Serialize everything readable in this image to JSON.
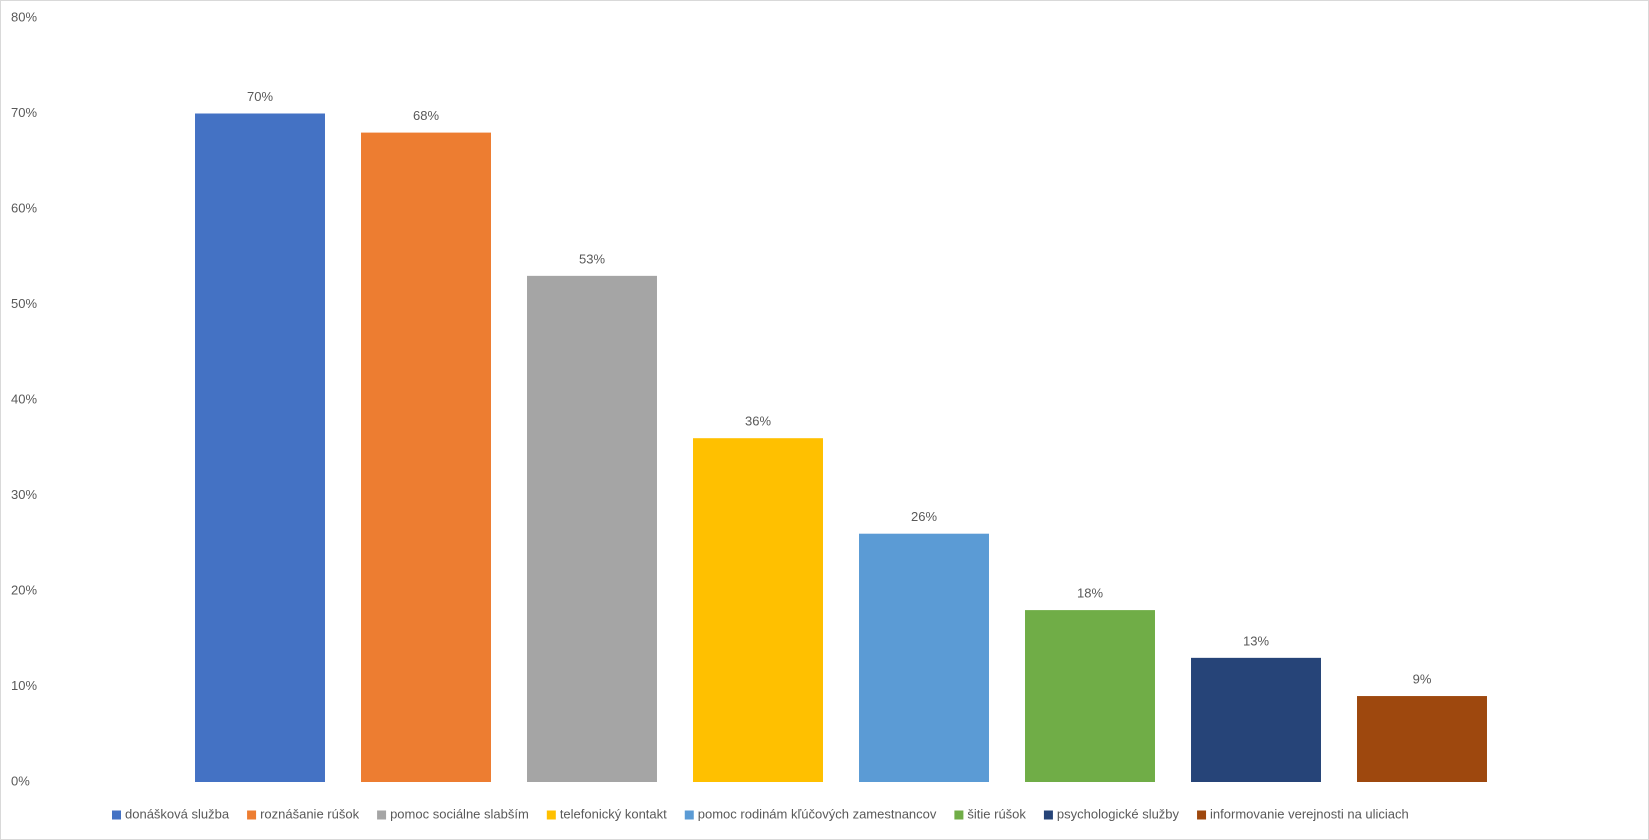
{
  "chart_data": {
    "type": "bar",
    "categories": [
      null
    ],
    "series": [
      {
        "name": "donášková služba",
        "color": "#4472c4",
        "values": [
          70
        ],
        "value_labels": [
          "70%"
        ]
      },
      {
        "name": "roznášanie rúšok",
        "color": "#ed7d31",
        "values": [
          68
        ],
        "value_labels": [
          "68%"
        ]
      },
      {
        "name": "pomoc sociálne slabším",
        "color": "#a5a5a5",
        "values": [
          53
        ],
        "value_labels": [
          "53%"
        ]
      },
      {
        "name": "telefonický kontakt",
        "color": "#ffc000",
        "values": [
          36
        ],
        "value_labels": [
          "36%"
        ]
      },
      {
        "name": "pomoc rodinám kľúčových zamestnancov",
        "color": "#5b9bd5",
        "values": [
          26
        ],
        "value_labels": [
          "26%"
        ]
      },
      {
        "name": "šitie rúšok",
        "color": "#70ad47",
        "values": [
          18
        ],
        "value_labels": [
          "18%"
        ]
      },
      {
        "name": "psychologické služby",
        "color": "#264478",
        "values": [
          13
        ],
        "value_labels": [
          "13%"
        ]
      },
      {
        "name": "informovanie verejnosti na uliciach",
        "color": "#9e480e",
        "values": [
          9
        ],
        "value_labels": [
          "9%"
        ]
      }
    ],
    "ylim": [
      0,
      80
    ],
    "yticks": [
      {
        "value": 0,
        "label": "0%"
      },
      {
        "value": 10,
        "label": "10%"
      },
      {
        "value": 20,
        "label": "20%"
      },
      {
        "value": 30,
        "label": "30%"
      },
      {
        "value": 40,
        "label": "40%"
      },
      {
        "value": 50,
        "label": "50%"
      },
      {
        "value": 60,
        "label": "60%"
      },
      {
        "value": 70,
        "label": "70%"
      },
      {
        "value": 80,
        "label": "80%"
      }
    ],
    "grid": false,
    "legend": "bottom"
  }
}
